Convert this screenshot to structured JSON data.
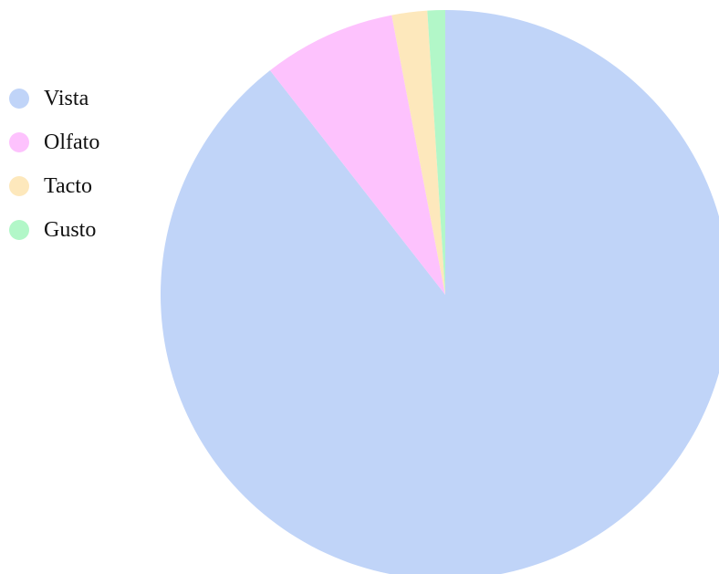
{
  "chart_data": {
    "type": "pie",
    "title": "",
    "categories": [
      "Vista",
      "Olfato",
      "Tacto",
      "Gusto"
    ],
    "values": [
      89,
      7.5,
      2,
      1
    ],
    "colors": [
      "#c0d4f8",
      "#fdc2fd",
      "#fde8bc",
      "#b2f7c8"
    ],
    "legend_position": "left"
  }
}
